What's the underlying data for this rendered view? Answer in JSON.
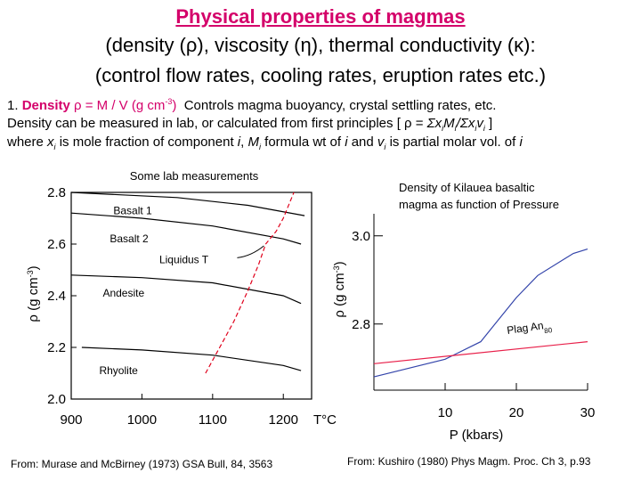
{
  "header": {
    "title": "Physical properties of magmas",
    "subtitle_line1": "(density (ρ), viscosity (η), thermal conductivity (κ):",
    "subtitle_line2": "(control flow rates, cooling rates, eruption rates etc.)"
  },
  "text": {
    "item_number": "1.",
    "density_word": "Density",
    "density_formula": "ρ = M / V (g cm",
    "density_exp": "-3",
    "density_close": ")",
    "density_controls": "Controls magma buoyancy, crystal settling rates, etc.",
    "line2_prefix": "Density can be measured in lab, or calculated from first principles [ ρ = ",
    "line2_sigma1": "Σx",
    "line2_sub_i1": "i",
    "line2_m": "M",
    "line2_sub_i2": "i",
    "line2_slash": "/Σx",
    "line2_sub_i3": "i",
    "line2_v": "v",
    "line2_sub_i4": "i",
    "line2_suffix": " ]",
    "line3_where": "where ",
    "line3_x": "x",
    "line3_sub_i": "i",
    "line3_mid1": " is mole fraction of component ",
    "line3_i1": "i",
    "line3_comma": ", ",
    "line3_M": "M",
    "line3_sub_i2": "i",
    "line3_mid2": " formula wt of ",
    "line3_i2": "i",
    "line3_and": " and ",
    "line3_v": "v",
    "line3_sub_i3": "i",
    "line3_mid3": " is partial molar vol. of ",
    "line3_i3": "i"
  },
  "sources": {
    "left": "From: Murase and McBirney (1973) GSA Bull, 84, 3563",
    "right": "From:  Kushiro (1980) Phys Magm. Proc. Ch 3, p.93"
  },
  "colors": {
    "accent": "#d4006a",
    "curve_black": "#000000",
    "liquidus_red": "#e0001b",
    "kilauea_blue": "#3344aa",
    "plag_pink": "#e8204a"
  },
  "chart_data": [
    {
      "type": "line",
      "title": "Some lab measurements",
      "xlabel": "T°C",
      "ylabel": "ρ (g cm-3)",
      "xlim": [
        900,
        1240
      ],
      "ylim": [
        2.0,
        2.8
      ],
      "x_ticks": [
        "900",
        "1000",
        "1100",
        "1200"
      ],
      "y_ticks": [
        "2.0",
        "2.2",
        "2.4",
        "2.6",
        "2.8"
      ],
      "series": [
        {
          "name": "Basalt 1",
          "style": "solid",
          "x": [
            900,
            1050,
            1150,
            1230
          ],
          "y": [
            2.8,
            2.78,
            2.75,
            2.71
          ]
        },
        {
          "name": "Basalt 2",
          "style": "solid",
          "x": [
            900,
            1000,
            1100,
            1200,
            1225
          ],
          "y": [
            2.72,
            2.7,
            2.67,
            2.62,
            2.6
          ]
        },
        {
          "name": "Andesite",
          "style": "solid",
          "x": [
            900,
            1000,
            1100,
            1200,
            1225
          ],
          "y": [
            2.48,
            2.47,
            2.45,
            2.4,
            2.37
          ]
        },
        {
          "name": "Rhyolite",
          "style": "solid",
          "x": [
            915,
            1000,
            1100,
            1200,
            1225
          ],
          "y": [
            2.2,
            2.19,
            2.17,
            2.13,
            2.11
          ]
        },
        {
          "name": "Liquidus T",
          "style": "dashed",
          "x": [
            1090,
            1110,
            1130,
            1150,
            1165,
            1175,
            1190,
            1200,
            1215
          ],
          "y": [
            2.1,
            2.2,
            2.3,
            2.42,
            2.52,
            2.6,
            2.65,
            2.7,
            2.8
          ]
        }
      ],
      "annotations": [
        "Basalt 1",
        "Basalt 2",
        "Liquidus T",
        "Andesite",
        "Rhyolite"
      ]
    },
    {
      "type": "line",
      "title": "Density of Kilauea basaltic magma as function of Pressure",
      "xlabel": "P (kbars)",
      "ylabel": "ρ (g cm-3)",
      "x_ticks": [
        "10",
        "20",
        "30"
      ],
      "y_ticks": [
        "3.0",
        "2.8"
      ],
      "series": [
        {
          "name": "Kilauea",
          "style": "solid",
          "x": [
            0,
            5,
            10,
            15,
            17,
            20,
            23,
            28,
            30
          ],
          "y": [
            2.68,
            2.7,
            2.72,
            2.76,
            2.8,
            2.86,
            2.91,
            2.96,
            2.97
          ]
        },
        {
          "name": "Plag An80",
          "style": "solid",
          "x": [
            0,
            30
          ],
          "y": [
            2.71,
            2.76
          ]
        }
      ],
      "annotations": [
        "Plag An80"
      ]
    }
  ]
}
